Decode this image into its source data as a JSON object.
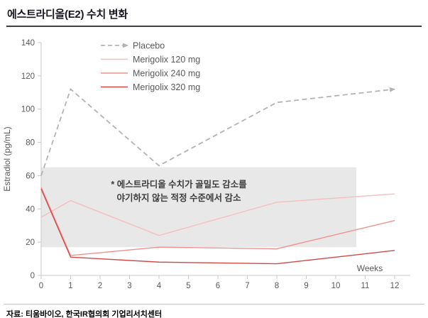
{
  "page": {
    "title": "에스트라디올(E2) 수치 변화",
    "source": "자료: 티움바이오, 한국IR협의회 기업리서치센터"
  },
  "chart_data": {
    "type": "line",
    "x": [
      0,
      1,
      4,
      8,
      12
    ],
    "series": [
      {
        "name": "Placebo",
        "values": [
          60,
          112,
          66,
          104,
          112
        ],
        "color": "#b3b3b3",
        "width": 1.8,
        "dashed": true,
        "arrow": true
      },
      {
        "name": "Merigolix 120 mg",
        "values": [
          35,
          45,
          24,
          44,
          49
        ],
        "color": "#f6bdbf",
        "width": 1.4,
        "dashed": false,
        "arrow": false
      },
      {
        "name": "Merigolix 240 mg",
        "values": [
          53,
          12,
          17,
          16,
          33
        ],
        "color": "#f0908f",
        "width": 1.4,
        "dashed": false,
        "arrow": false
      },
      {
        "name": "Merigolix 320 mg",
        "values": [
          52,
          11,
          8,
          7,
          15
        ],
        "color": "#cf4a47",
        "width": 1.4,
        "dashed": false,
        "arrow": false
      }
    ],
    "ylabel": "Estradiol (pg/mL)",
    "xlabel": "Weeks",
    "ylim": [
      0,
      140
    ],
    "yticks": [
      0,
      20,
      40,
      60,
      80,
      100,
      120,
      140
    ],
    "xticks": [
      0,
      1,
      2,
      3,
      4,
      5,
      6,
      7,
      8,
      9,
      10,
      11,
      12
    ],
    "legend_position": "top-left-inside",
    "grid": false,
    "shaded_region": {
      "x_start": 0,
      "x_end": 10.7,
      "y_start": 17,
      "y_end": 65,
      "color": "#e8e8e8"
    },
    "annotation_lines": [
      "* 에스트라디올 수치가 골밀도 감소를",
      "야기하지 않는 적정 수준에서 감소"
    ],
    "axis_color": "#c9c9c9",
    "tick_label_color": "#595959"
  }
}
